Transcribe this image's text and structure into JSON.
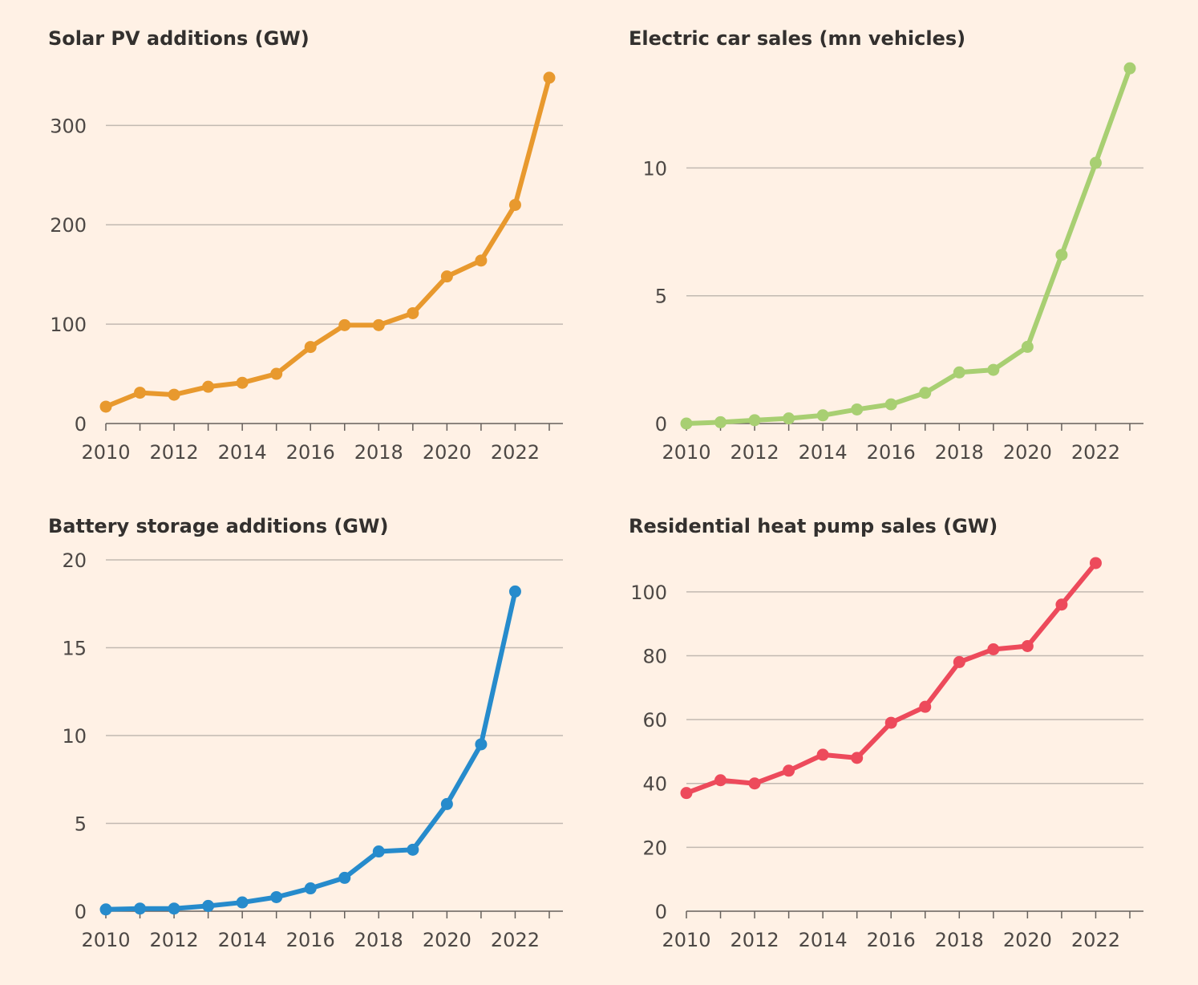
{
  "chart_data": [
    {
      "type": "line",
      "title": "Solar PV additions (GW)",
      "xlabel": "",
      "ylabel": "",
      "color": "#e8992e",
      "x": [
        2010,
        2011,
        2012,
        2013,
        2014,
        2015,
        2016,
        2017,
        2018,
        2019,
        2020,
        2021,
        2022,
        2023
      ],
      "values": [
        17,
        31,
        29,
        37,
        41,
        50,
        77,
        99,
        99,
        111,
        148,
        164,
        220,
        348
      ],
      "xlim": [
        2010,
        2023.4
      ],
      "ylim": [
        0,
        360
      ],
      "yticks": [
        0,
        100,
        200,
        300
      ],
      "xticks": [
        2010,
        2012,
        2014,
        2016,
        2018,
        2020,
        2022
      ],
      "grid": true
    },
    {
      "type": "line",
      "title": "Electric car sales (mn vehicles)",
      "xlabel": "",
      "ylabel": "",
      "color": "#a8cf72",
      "x": [
        2010,
        2011,
        2012,
        2013,
        2014,
        2015,
        2016,
        2017,
        2018,
        2019,
        2020,
        2021,
        2022,
        2023
      ],
      "values": [
        0.0,
        0.05,
        0.13,
        0.2,
        0.32,
        0.55,
        0.75,
        1.2,
        2.0,
        2.1,
        3.0,
        6.6,
        10.2,
        13.9
      ],
      "xlim": [
        2010,
        2023.4
      ],
      "ylim": [
        0,
        14
      ],
      "yticks": [
        0,
        5,
        10
      ],
      "xticks": [
        2010,
        2012,
        2014,
        2016,
        2018,
        2020,
        2022
      ],
      "grid": true
    },
    {
      "type": "line",
      "title": "Battery storage additions (GW)",
      "xlabel": "",
      "ylabel": "",
      "color": "#268bcc",
      "x": [
        2010,
        2011,
        2012,
        2013,
        2014,
        2015,
        2016,
        2017,
        2018,
        2019,
        2020,
        2021,
        2022
      ],
      "values": [
        0.1,
        0.15,
        0.15,
        0.3,
        0.5,
        0.8,
        1.3,
        1.9,
        3.4,
        3.5,
        6.1,
        9.5,
        18.2
      ],
      "xlim": [
        2010,
        2023.4
      ],
      "ylim": [
        0,
        20
      ],
      "yticks": [
        0,
        5,
        10,
        15,
        20
      ],
      "xticks": [
        2010,
        2012,
        2014,
        2016,
        2018,
        2020,
        2022
      ],
      "grid": true
    },
    {
      "type": "line",
      "title": "Residential heat pump sales (GW)",
      "xlabel": "",
      "ylabel": "",
      "color": "#ed4a5b",
      "x": [
        2010,
        2011,
        2012,
        2013,
        2014,
        2015,
        2016,
        2017,
        2018,
        2019,
        2020,
        2021,
        2022
      ],
      "values": [
        37,
        41,
        40,
        44,
        49,
        48,
        59,
        64,
        78,
        82,
        83,
        96,
        109
      ],
      "xlim": [
        2010,
        2023.4
      ],
      "ylim": [
        0,
        110
      ],
      "yticks": [
        0,
        20,
        40,
        60,
        80,
        100
      ],
      "xticks": [
        2010,
        2012,
        2014,
        2016,
        2018,
        2020,
        2022
      ],
      "grid": true
    }
  ]
}
